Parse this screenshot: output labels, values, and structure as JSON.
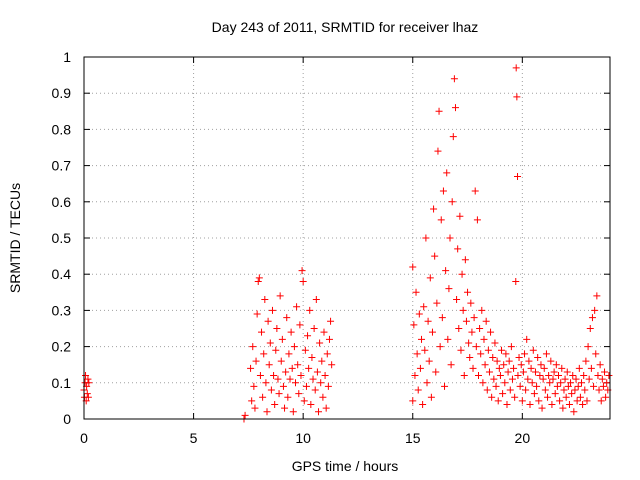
{
  "chart_data": {
    "type": "scatter",
    "title": "Day 243 of 2011, SRMTID for receiver lhaz",
    "xlabel": "GPS time / hours",
    "ylabel": "SRMTID / TECUs",
    "xlim": [
      0,
      24
    ],
    "ylim": [
      0,
      1
    ],
    "x_ticks": [
      "0",
      "5",
      "10",
      "15",
      "20"
    ],
    "x_tick_values": [
      0,
      5,
      10,
      15,
      20
    ],
    "y_ticks": [
      "0",
      "0.1",
      "0.2",
      "0.3",
      "0.4",
      "0.5",
      "0.6",
      "0.7",
      "0.8",
      "0.9",
      "1"
    ],
    "y_tick_values": [
      0,
      0.1,
      0.2,
      0.3,
      0.4,
      0.5,
      0.6,
      0.7,
      0.8,
      0.9,
      1.0
    ],
    "grid": true,
    "marker": "+",
    "marker_color": "#ff0000",
    "series": [
      {
        "name": "SRMTID",
        "points": [
          [
            0.0,
            0.08
          ],
          [
            0.02,
            0.06
          ],
          [
            0.05,
            0.1
          ],
          [
            0.07,
            0.12
          ],
          [
            0.1,
            0.05
          ],
          [
            0.12,
            0.09
          ],
          [
            0.15,
            0.07
          ],
          [
            0.18,
            0.11
          ],
          [
            0.2,
            0.06
          ],
          [
            0.22,
            0.1
          ],
          [
            7.3,
            0.0
          ],
          [
            7.35,
            0.01
          ],
          [
            7.6,
            0.14
          ],
          [
            7.65,
            0.05
          ],
          [
            7.7,
            0.2
          ],
          [
            7.75,
            0.09
          ],
          [
            7.8,
            0.03
          ],
          [
            7.85,
            0.16
          ],
          [
            7.9,
            0.29
          ],
          [
            7.95,
            0.38
          ],
          [
            8.0,
            0.39
          ],
          [
            8.05,
            0.12
          ],
          [
            8.1,
            0.24
          ],
          [
            8.15,
            0.06
          ],
          [
            8.2,
            0.18
          ],
          [
            8.25,
            0.33
          ],
          [
            8.3,
            0.1
          ],
          [
            8.35,
            0.02
          ],
          [
            8.4,
            0.27
          ],
          [
            8.45,
            0.15
          ],
          [
            8.5,
            0.21
          ],
          [
            8.55,
            0.08
          ],
          [
            8.6,
            0.3
          ],
          [
            8.65,
            0.12
          ],
          [
            8.7,
            0.04
          ],
          [
            8.75,
            0.19
          ],
          [
            8.8,
            0.25
          ],
          [
            8.85,
            0.11
          ],
          [
            8.9,
            0.07
          ],
          [
            8.95,
            0.34
          ],
          [
            9.0,
            0.16
          ],
          [
            9.05,
            0.22
          ],
          [
            9.1,
            0.09
          ],
          [
            9.15,
            0.03
          ],
          [
            9.2,
            0.13
          ],
          [
            9.25,
            0.28
          ],
          [
            9.3,
            0.06
          ],
          [
            9.35,
            0.18
          ],
          [
            9.4,
            0.11
          ],
          [
            9.45,
            0.24
          ],
          [
            9.5,
            0.14
          ],
          [
            9.55,
            0.02
          ],
          [
            9.6,
            0.2
          ],
          [
            9.65,
            0.1
          ],
          [
            9.7,
            0.31
          ],
          [
            9.75,
            0.15
          ],
          [
            9.8,
            0.07
          ],
          [
            9.85,
            0.26
          ],
          [
            9.9,
            0.12
          ],
          [
            9.95,
            0.41
          ],
          [
            10.0,
            0.38
          ],
          [
            10.05,
            0.05
          ],
          [
            10.1,
            0.19
          ],
          [
            10.15,
            0.09
          ],
          [
            10.2,
            0.23
          ],
          [
            10.25,
            0.14
          ],
          [
            10.3,
            0.3
          ],
          [
            10.35,
            0.04
          ],
          [
            10.4,
            0.17
          ],
          [
            10.45,
            0.11
          ],
          [
            10.5,
            0.25
          ],
          [
            10.55,
            0.08
          ],
          [
            10.6,
            0.33
          ],
          [
            10.65,
            0.13
          ],
          [
            10.7,
            0.02
          ],
          [
            10.75,
            0.21
          ],
          [
            10.8,
            0.1
          ],
          [
            10.85,
            0.16
          ],
          [
            10.9,
            0.06
          ],
          [
            10.95,
            0.24
          ],
          [
            11.0,
            0.12
          ],
          [
            11.05,
            0.03
          ],
          [
            11.1,
            0.18
          ],
          [
            11.15,
            0.09
          ],
          [
            11.2,
            0.22
          ],
          [
            11.25,
            0.27
          ],
          [
            11.3,
            0.15
          ],
          [
            15.0,
            0.05
          ],
          [
            15.0,
            0.42
          ],
          [
            15.05,
            0.26
          ],
          [
            15.1,
            0.12
          ],
          [
            15.15,
            0.35
          ],
          [
            15.2,
            0.18
          ],
          [
            15.25,
            0.08
          ],
          [
            15.3,
            0.29
          ],
          [
            15.35,
            0.14
          ],
          [
            15.4,
            0.22
          ],
          [
            15.45,
            0.04
          ],
          [
            15.5,
            0.31
          ],
          [
            15.55,
            0.19
          ],
          [
            15.6,
            0.5
          ],
          [
            15.65,
            0.1
          ],
          [
            15.7,
            0.27
          ],
          [
            15.75,
            0.16
          ],
          [
            15.8,
            0.39
          ],
          [
            15.85,
            0.06
          ],
          [
            15.9,
            0.24
          ],
          [
            15.95,
            0.58
          ],
          [
            16.0,
            0.45
          ],
          [
            16.05,
            0.13
          ],
          [
            16.1,
            0.32
          ],
          [
            16.15,
            0.74
          ],
          [
            16.2,
            0.85
          ],
          [
            16.25,
            0.2
          ],
          [
            16.3,
            0.55
          ],
          [
            16.35,
            0.28
          ],
          [
            16.4,
            0.63
          ],
          [
            16.45,
            0.09
          ],
          [
            16.5,
            0.41
          ],
          [
            16.55,
            0.68
          ],
          [
            16.6,
            0.22
          ],
          [
            16.65,
            0.36
          ],
          [
            16.7,
            0.5
          ],
          [
            16.75,
            0.15
          ],
          [
            16.8,
            0.6
          ],
          [
            16.85,
            0.78
          ],
          [
            16.9,
            0.94
          ],
          [
            16.95,
            0.86
          ],
          [
            17.0,
            0.33
          ],
          [
            17.05,
            0.47
          ],
          [
            17.1,
            0.25
          ],
          [
            17.15,
            0.56
          ],
          [
            17.2,
            0.19
          ],
          [
            17.25,
            0.4
          ],
          [
            17.3,
            0.3
          ],
          [
            17.35,
            0.12
          ],
          [
            17.4,
            0.44
          ],
          [
            17.45,
            0.27
          ],
          [
            17.5,
            0.35
          ],
          [
            17.55,
            0.21
          ],
          [
            17.6,
            0.17
          ],
          [
            17.65,
            0.32
          ],
          [
            17.7,
            0.24
          ],
          [
            17.75,
            0.14
          ],
          [
            17.8,
            0.28
          ],
          [
            17.85,
            0.63
          ],
          [
            17.9,
            0.2
          ],
          [
            17.95,
            0.55
          ],
          [
            18.0,
            0.12
          ],
          [
            18.05,
            0.25
          ],
          [
            18.1,
            0.18
          ],
          [
            18.15,
            0.3
          ],
          [
            18.2,
            0.1
          ],
          [
            18.25,
            0.22
          ],
          [
            18.3,
            0.15
          ],
          [
            18.35,
            0.27
          ],
          [
            18.4,
            0.08
          ],
          [
            18.45,
            0.19
          ],
          [
            18.5,
            0.13
          ],
          [
            18.55,
            0.24
          ],
          [
            18.6,
            0.06
          ],
          [
            18.65,
            0.17
          ],
          [
            18.7,
            0.11
          ],
          [
            18.75,
            0.21
          ],
          [
            18.8,
            0.09
          ],
          [
            18.85,
            0.16
          ],
          [
            18.9,
            0.05
          ],
          [
            18.95,
            0.14
          ],
          [
            19.0,
            0.12
          ],
          [
            19.05,
            0.19
          ],
          [
            19.1,
            0.07
          ],
          [
            19.15,
            0.15
          ],
          [
            19.2,
            0.1
          ],
          [
            19.25,
            0.18
          ],
          [
            19.3,
            0.04
          ],
          [
            19.35,
            0.13
          ],
          [
            19.4,
            0.16
          ],
          [
            19.45,
            0.08
          ],
          [
            19.5,
            0.2
          ],
          [
            19.55,
            0.11
          ],
          [
            19.6,
            0.14
          ],
          [
            19.65,
            0.06
          ],
          [
            19.7,
            0.38
          ],
          [
            19.72,
            0.97
          ],
          [
            19.75,
            0.89
          ],
          [
            19.78,
            0.67
          ],
          [
            19.8,
            0.12
          ],
          [
            19.85,
            0.17
          ],
          [
            19.9,
            0.09
          ],
          [
            19.95,
            0.15
          ],
          [
            20.0,
            0.05
          ],
          [
            20.05,
            0.13
          ],
          [
            20.1,
            0.18
          ],
          [
            20.15,
            0.08
          ],
          [
            20.2,
            0.22
          ],
          [
            20.25,
            0.11
          ],
          [
            20.3,
            0.16
          ],
          [
            20.35,
            0.04
          ],
          [
            20.4,
            0.14
          ],
          [
            20.45,
            0.1
          ],
          [
            20.5,
            0.19
          ],
          [
            20.55,
            0.07
          ],
          [
            20.6,
            0.13
          ],
          [
            20.65,
            0.09
          ],
          [
            20.7,
            0.17
          ],
          [
            20.75,
            0.05
          ],
          [
            20.8,
            0.12
          ],
          [
            20.85,
            0.15
          ],
          [
            20.9,
            0.03
          ],
          [
            20.95,
            0.11
          ],
          [
            21.0,
            0.14
          ],
          [
            21.05,
            0.08
          ],
          [
            21.1,
            0.18
          ],
          [
            21.15,
            0.06
          ],
          [
            21.2,
            0.12
          ],
          [
            21.25,
            0.1
          ],
          [
            21.3,
            0.16
          ],
          [
            21.35,
            0.04
          ],
          [
            21.4,
            0.11
          ],
          [
            21.45,
            0.13
          ],
          [
            21.5,
            0.07
          ],
          [
            21.55,
            0.15
          ],
          [
            21.6,
            0.09
          ],
          [
            21.65,
            0.12
          ],
          [
            21.7,
            0.05
          ],
          [
            21.75,
            0.1
          ],
          [
            21.8,
            0.14
          ],
          [
            21.85,
            0.03
          ],
          [
            21.9,
            0.08
          ],
          [
            21.95,
            0.11
          ],
          [
            22.0,
            0.06
          ],
          [
            22.05,
            0.13
          ],
          [
            22.1,
            0.09
          ],
          [
            22.15,
            0.04
          ],
          [
            22.2,
            0.1
          ],
          [
            22.25,
            0.07
          ],
          [
            22.3,
            0.12
          ],
          [
            22.35,
            0.02
          ],
          [
            22.4,
            0.08
          ],
          [
            22.45,
            0.11
          ],
          [
            22.5,
            0.05
          ],
          [
            22.55,
            0.09
          ],
          [
            22.6,
            0.14
          ],
          [
            22.65,
            0.06
          ],
          [
            22.7,
            0.1
          ],
          [
            22.75,
            0.04
          ],
          [
            22.8,
            0.12
          ],
          [
            22.85,
            0.08
          ],
          [
            22.9,
            0.16
          ],
          [
            22.95,
            0.05
          ],
          [
            23.0,
            0.2
          ],
          [
            23.05,
            0.11
          ],
          [
            23.1,
            0.25
          ],
          [
            23.15,
            0.14
          ],
          [
            23.2,
            0.28
          ],
          [
            23.25,
            0.09
          ],
          [
            23.3,
            0.3
          ],
          [
            23.35,
            0.18
          ],
          [
            23.4,
            0.34
          ],
          [
            23.45,
            0.12
          ],
          [
            23.5,
            0.08
          ],
          [
            23.55,
            0.15
          ],
          [
            23.6,
            0.05
          ],
          [
            23.65,
            0.11
          ],
          [
            23.7,
            0.09
          ],
          [
            23.75,
            0.13
          ],
          [
            23.8,
            0.06
          ],
          [
            23.85,
            0.1
          ],
          [
            23.9,
            0.08
          ],
          [
            23.95,
            0.12
          ]
        ]
      }
    ]
  }
}
